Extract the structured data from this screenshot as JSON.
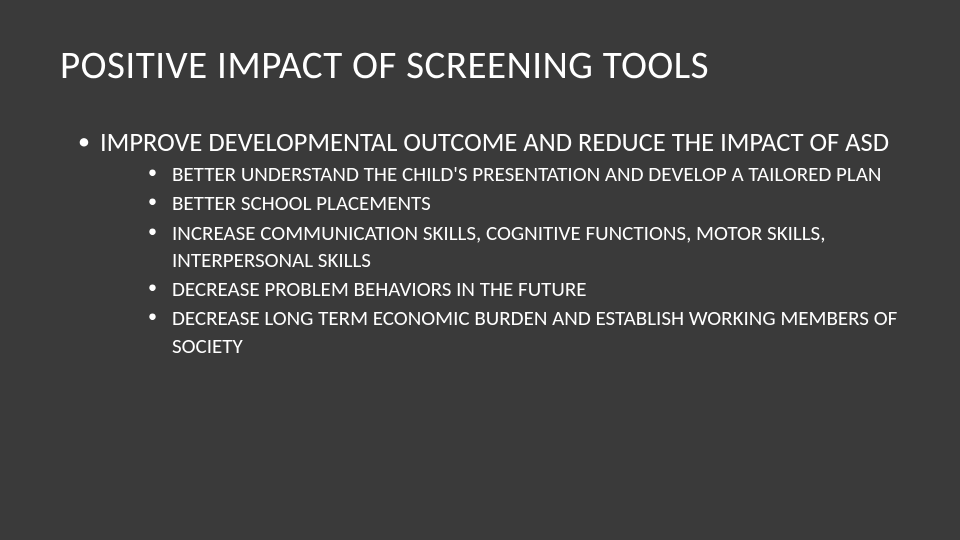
{
  "slide": {
    "background_color": "#3a3a3a",
    "text_color": "#ffffff",
    "title": "POSITIVE IMPACT OF SCREENING TOOLS",
    "title_fontsize": 39,
    "main_bullet": "IMPROVE DEVELOPMENTAL OUTCOME AND REDUCE THE IMPACT OF ASD",
    "main_fontsize": 26.5,
    "sub_bullets": [
      "BETTER UNDERSTAND THE CHILD'S PRESENTATION AND DEVELOP A TAILORED PLAN",
      "BETTER SCHOOL PLACEMENTS",
      "INCREASE COMMUNICATION SKILLS, COGNITIVE FUNCTIONS, MOTOR SKILLS, INTERPERSONAL SKILLS",
      "DECREASE PROBLEM BEHAVIORS IN THE FUTURE",
      "DECREASE LONG TERM ECONOMIC BURDEN AND ESTABLISH WORKING MEMBERS OF SOCIETY"
    ],
    "sub_fontsize": 21
  }
}
